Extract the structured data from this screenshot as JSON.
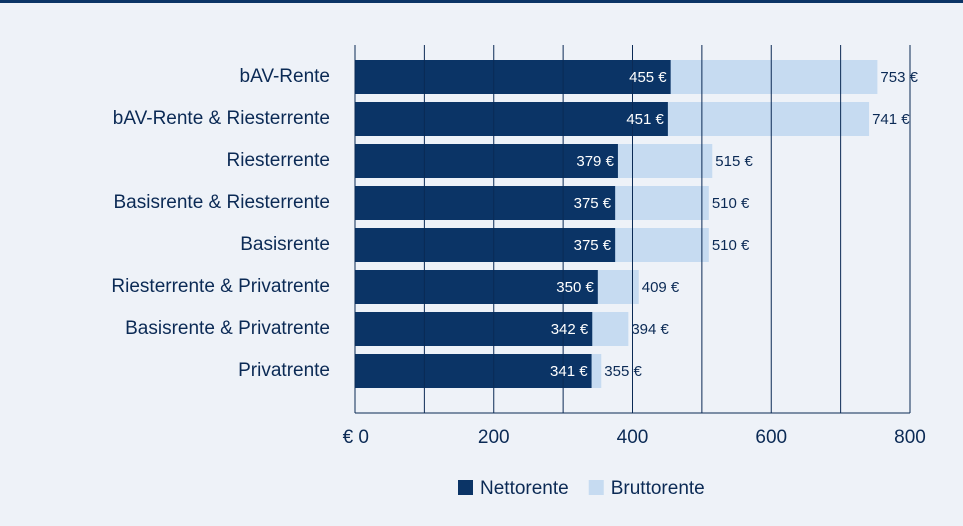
{
  "chart_data": {
    "type": "bar",
    "orientation": "horizontal",
    "overlap": true,
    "categories": [
      "bAV-Rente",
      "bAV-Rente & Riesterrente",
      "Riesterrente",
      "Basisrente & Riesterrente",
      "Basisrente",
      "Riesterrente & Privatrente",
      "Basisrente & Privatrente",
      "Privatrente"
    ],
    "series": [
      {
        "name": "Bruttorente",
        "color": "#c6dbf1",
        "values": [
          753,
          741,
          515,
          510,
          510,
          409,
          394,
          355
        ],
        "value_labels": [
          "753 €",
          "741 €",
          "515 €",
          "510 €",
          "510 €",
          "409 €",
          "394 €",
          "355 €"
        ]
      },
      {
        "name": "Nettorente",
        "color": "#0b3466",
        "values": [
          455,
          451,
          379,
          375,
          375,
          350,
          342,
          341
        ],
        "value_labels": [
          "455 €",
          "451 €",
          "379 €",
          "375 €",
          "375 €",
          "350 €",
          "342 €",
          "341 €"
        ]
      }
    ],
    "xlim": [
      0,
      800
    ],
    "xticks": [
      {
        "value": 0,
        "label": "€ 0"
      },
      200,
      400,
      600,
      800
    ],
    "xminorticks": [
      100,
      300,
      500,
      700
    ],
    "grid": true,
    "legend": "bottom",
    "legend_order": [
      1,
      0
    ]
  }
}
